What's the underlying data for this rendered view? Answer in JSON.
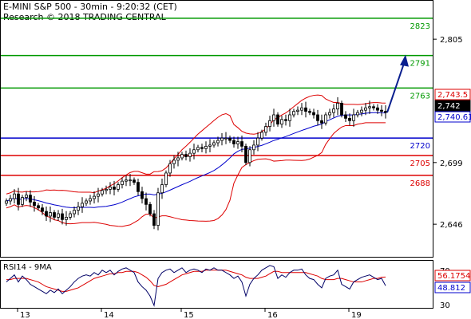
{
  "header": {
    "title": "E-MINI S&P 500 - 30min - 9:20:32 (CET)",
    "credit": "Research © 2018 TRADING CENTRAL"
  },
  "colors": {
    "resistance": "#009900",
    "pivot": "#0000cc",
    "support": "#dd0000",
    "candles": "#000000",
    "bollinger": "#dd0000",
    "moving_average": "#0000cc",
    "arrow": "#0a1f8f",
    "rsi_line": "#000066",
    "rsi_ma": "#dd0000"
  },
  "chart_data": [
    {
      "type": "candlestick",
      "title": "E-MINI S&P 500 - 30min - 9:20:32 (CET)",
      "ylim": [
        2618,
        2838
      ],
      "y_ticks": [
        "2,805",
        "2,699",
        "2,646"
      ],
      "y_tick_values": [
        2805,
        2699,
        2646
      ],
      "x_ticks": [
        "13",
        "14",
        "15",
        "16",
        "19"
      ],
      "levels": [
        {
          "label": "2823",
          "value": 2823,
          "kind": "resistance"
        },
        {
          "label": "2791",
          "value": 2791,
          "kind": "resistance"
        },
        {
          "label": "2763",
          "value": 2763,
          "kind": "resistance"
        },
        {
          "label": "2720",
          "value": 2720,
          "kind": "pivot"
        },
        {
          "label": "2705",
          "value": 2705,
          "kind": "support"
        },
        {
          "label": "2688",
          "value": 2688,
          "kind": "support"
        }
      ],
      "price_tags": [
        {
          "label": "2,743.5",
          "value": 2743.5,
          "kind": "bollinger"
        },
        {
          "label": "2,742",
          "value": 2742,
          "kind": "last"
        },
        {
          "label": "2,740.61",
          "value": 2740.61,
          "kind": "moving_average"
        }
      ],
      "closes": [
        2666,
        2668,
        2672,
        2663,
        2669,
        2671,
        2665,
        2662,
        2660,
        2657,
        2653,
        2656,
        2652,
        2655,
        2650,
        2652,
        2655,
        2658,
        2661,
        2664,
        2666,
        2668,
        2670,
        2672,
        2675,
        2676,
        2678,
        2676,
        2680,
        2683,
        2684,
        2684,
        2682,
        2674,
        2668,
        2663,
        2655,
        2645,
        2673,
        2680,
        2690,
        2698,
        2701,
        2703,
        2706,
        2704,
        2707,
        2710,
        2712,
        2711,
        2713,
        2714,
        2716,
        2718,
        2720,
        2720,
        2718,
        2715,
        2717,
        2713,
        2699,
        2710,
        2714,
        2720,
        2725,
        2730,
        2735,
        2740,
        2732,
        2736,
        2735,
        2740,
        2743,
        2744,
        2746,
        2743,
        2742,
        2740,
        2735,
        2733,
        2740,
        2742,
        2745,
        2750,
        2740,
        2737,
        2735,
        2740,
        2742,
        2744,
        2746,
        2747,
        2746,
        2744,
        2743,
        2742
      ],
      "forecast_arrow": {
        "from": 2742,
        "to": 2791
      }
    },
    {
      "type": "line",
      "title": "RSI14 - 9MA",
      "ylim": [
        30,
        70
      ],
      "y_ticks": [
        "70",
        "30"
      ],
      "rsi_value": "48.812",
      "ma_value": "56.1754",
      "rsi": [
        52,
        55,
        58,
        52,
        57,
        54,
        50,
        48,
        46,
        44,
        42,
        45,
        43,
        46,
        42,
        45,
        48,
        52,
        55,
        57,
        58,
        57,
        60,
        58,
        62,
        60,
        62,
        58,
        61,
        63,
        64,
        62,
        60,
        52,
        48,
        45,
        40,
        32,
        55,
        60,
        62,
        63,
        60,
        62,
        64,
        60,
        62,
        63,
        62,
        60,
        63,
        62,
        64,
        62,
        62,
        60,
        58,
        55,
        57,
        52,
        40,
        50,
        55,
        58,
        62,
        64,
        66,
        65,
        55,
        58,
        56,
        60,
        62,
        62,
        63,
        58,
        55,
        54,
        50,
        47,
        55,
        57,
        58,
        62,
        50,
        48,
        46,
        52,
        54,
        56,
        57,
        58,
        56,
        54,
        55,
        48.8
      ],
      "ma": [
        54,
        54,
        55,
        55,
        55,
        55,
        54,
        53,
        52,
        50,
        48,
        47,
        46,
        45,
        44,
        44,
        45,
        46,
        47,
        49,
        51,
        53,
        55,
        56,
        57,
        58,
        59,
        59,
        60,
        60,
        61,
        61,
        61,
        60,
        58,
        56,
        53,
        49,
        48,
        49,
        50,
        52,
        54,
        56,
        58,
        59,
        60,
        61,
        61,
        61,
        62,
        62,
        62,
        62,
        62,
        62,
        61,
        60,
        59,
        58,
        56,
        55,
        55,
        55,
        56,
        57,
        59,
        61,
        61,
        60,
        60,
        60,
        60,
        60,
        60,
        60,
        59,
        58,
        57,
        55,
        54,
        54,
        54,
        55,
        55,
        54,
        53,
        52,
        52,
        52,
        53,
        54,
        55,
        55,
        56,
        56.2
      ]
    }
  ]
}
